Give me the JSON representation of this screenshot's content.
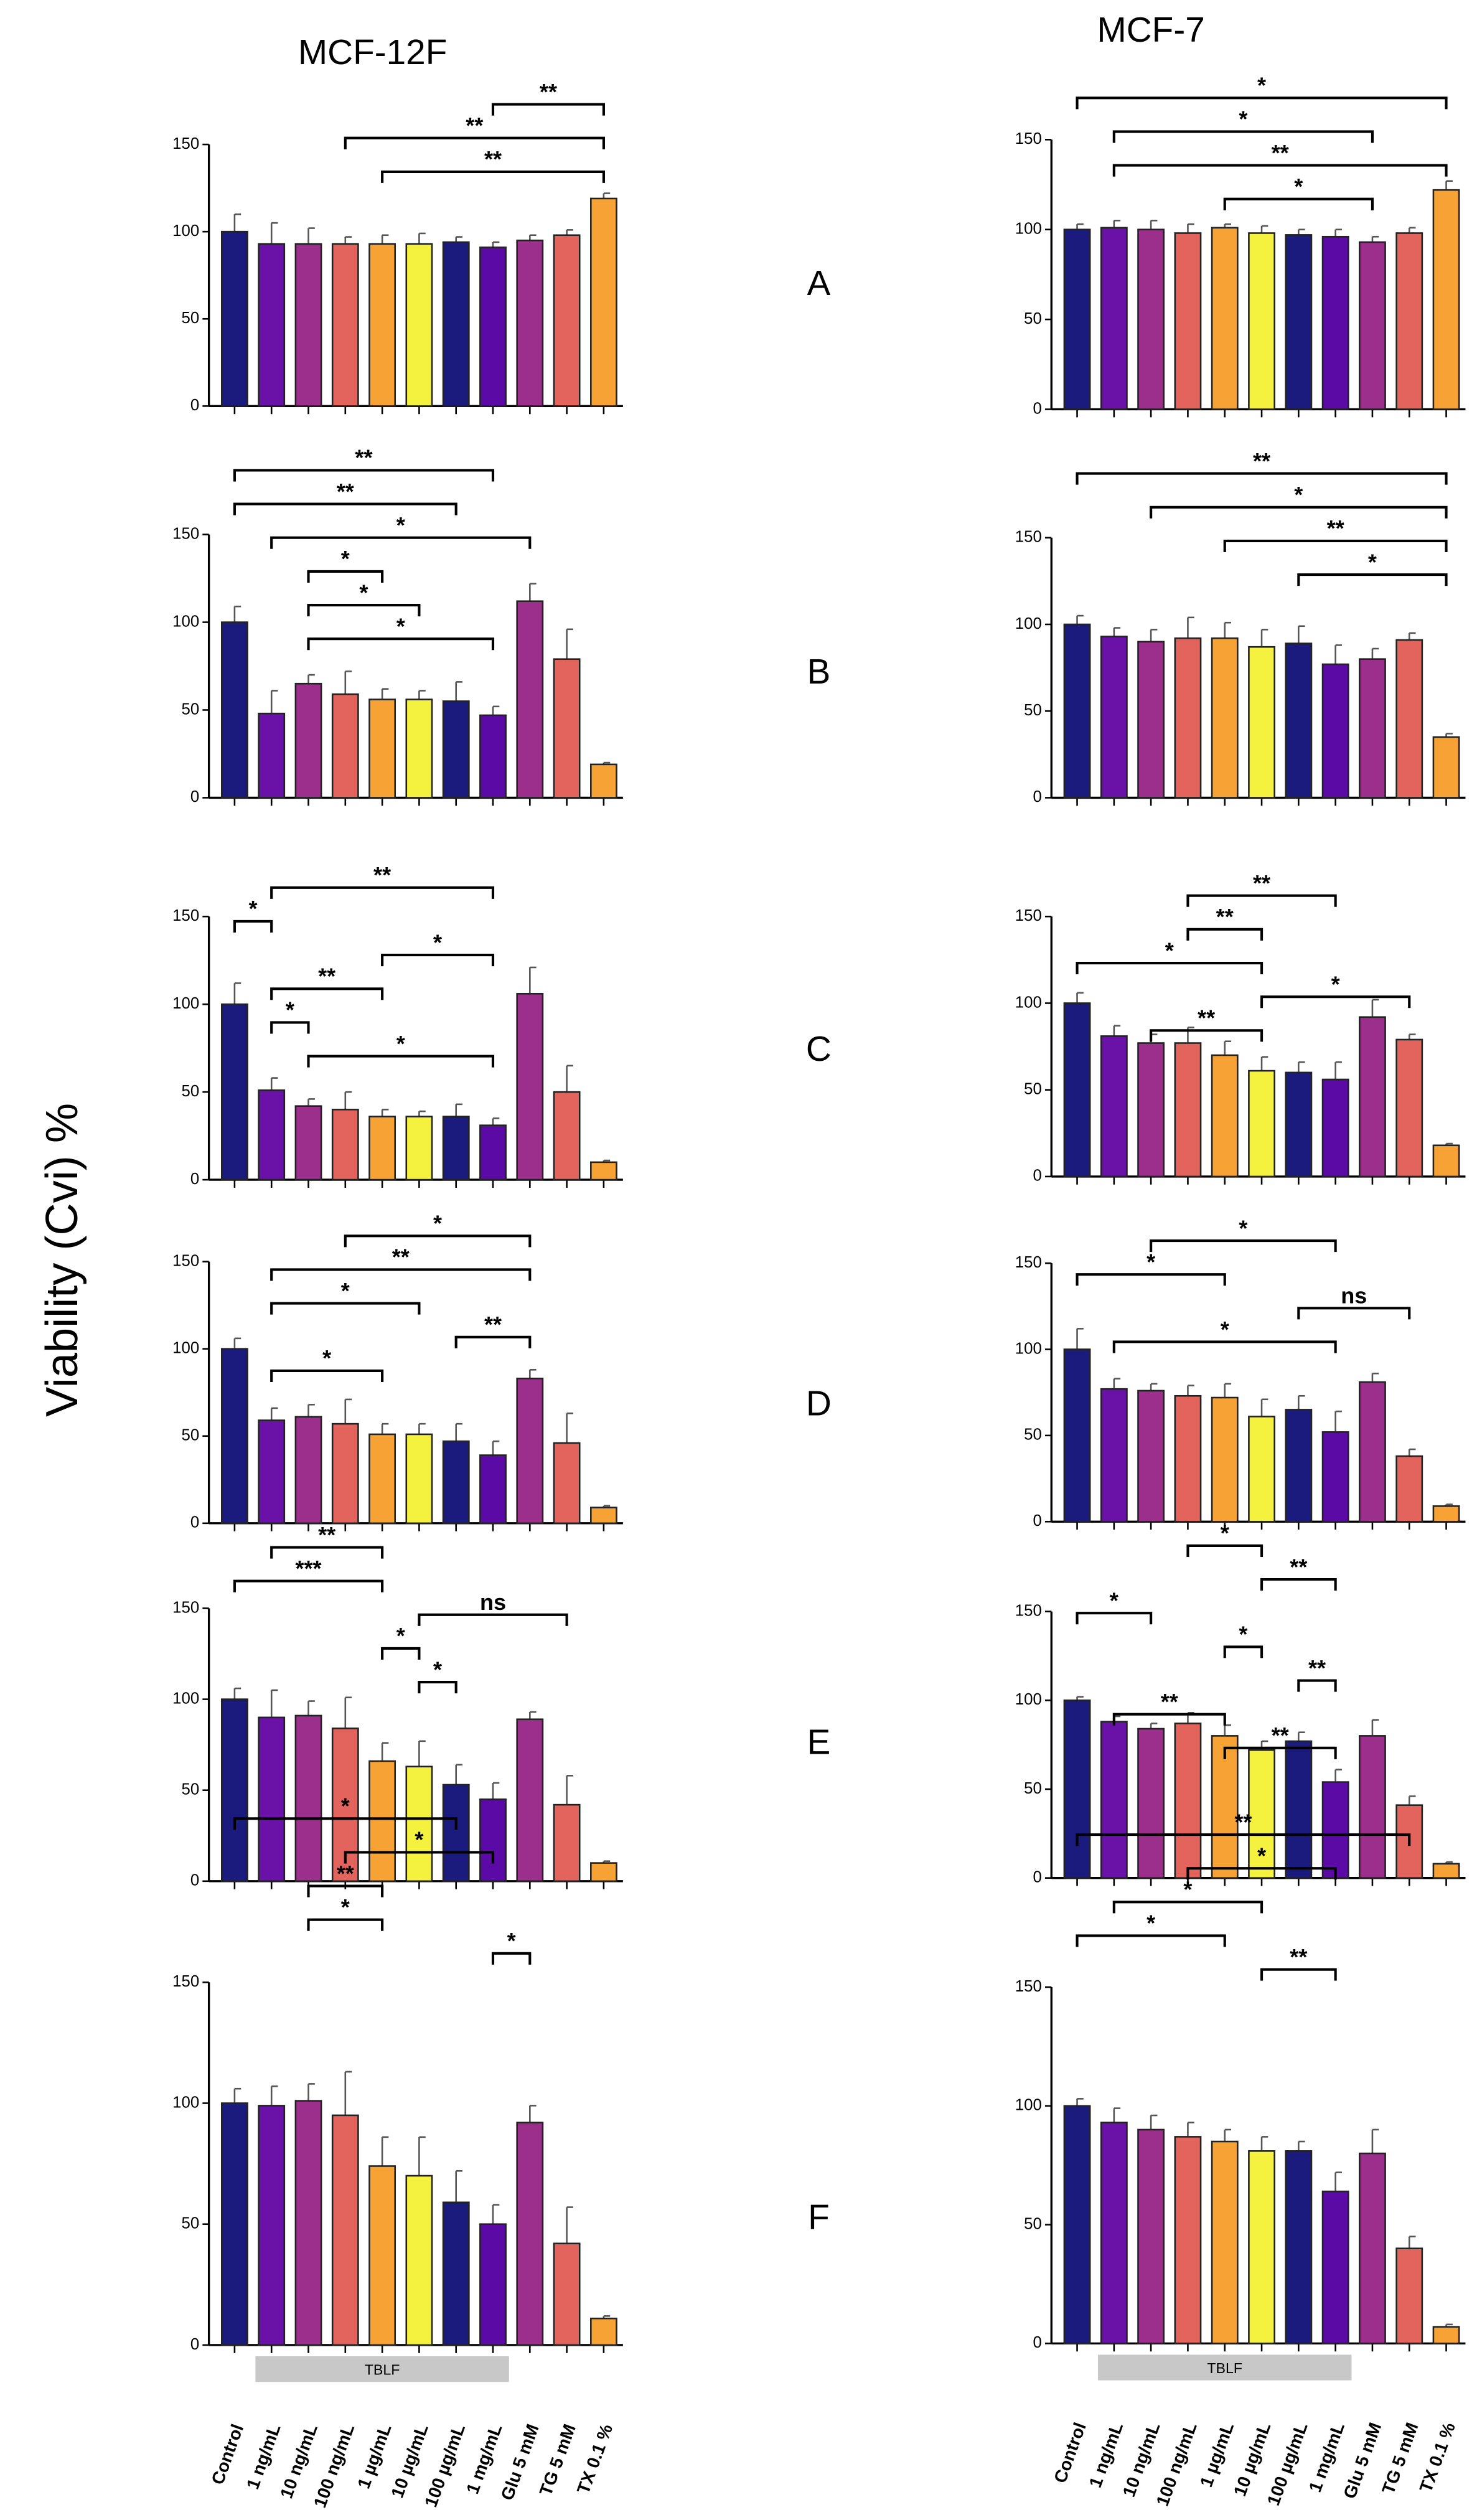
{
  "columns": [
    "MCF-12F",
    "MCF-7"
  ],
  "panels": [
    "A",
    "B",
    "C",
    "D",
    "E",
    "F"
  ],
  "ylabel": "Viability (Cvi) %",
  "group_label": "TBLF",
  "bar_colors": [
    "#1b1b7d",
    "#6a12a8",
    "#9c2e8c",
    "#e2645c",
    "#f7a234",
    "#f4f23e",
    "#1b1b7d",
    "#5c0aa6",
    "#9c2e8c",
    "#e2645c",
    "#f7a234"
  ],
  "chart_data": [
    {
      "type": "bar",
      "values": [
        100,
        93,
        93,
        93,
        93,
        93,
        94,
        91,
        95,
        98,
        119
      ],
      "errors": [
        10,
        12,
        9,
        4,
        5,
        6,
        3,
        3,
        3,
        3,
        3
      ],
      "ylim": [
        0,
        150
      ],
      "yticks": [
        0,
        50,
        100,
        150
      ],
      "annotations": [
        {
          "text": "**",
          "from": 7,
          "to": 10
        },
        {
          "text": "**",
          "from": 3,
          "to": 10
        },
        {
          "text": "**",
          "from": 4,
          "to": 10
        }
      ]
    },
    {
      "type": "bar",
      "values": [
        100,
        101,
        100,
        98,
        101,
        98,
        97,
        96,
        93,
        98,
        122
      ],
      "errors": [
        3,
        4,
        5,
        5,
        2,
        4,
        3,
        4,
        3,
        3,
        5
      ],
      "ylim": [
        0,
        150
      ],
      "yticks": [
        0,
        50,
        100,
        150
      ],
      "annotations": [
        {
          "text": "*",
          "from": 0,
          "to": 10
        },
        {
          "text": "*",
          "from": 1,
          "to": 8
        },
        {
          "text": "**",
          "from": 1,
          "to": 10
        },
        {
          "text": "*",
          "from": 4,
          "to": 8
        }
      ]
    },
    {
      "type": "bar",
      "values": [
        100,
        48,
        65,
        59,
        56,
        56,
        55,
        47,
        112,
        79,
        19
      ],
      "errors": [
        9,
        13,
        5,
        13,
        6,
        5,
        11,
        5,
        10,
        17,
        1
      ],
      "ylim": [
        0,
        150
      ],
      "yticks": [
        0,
        50,
        100,
        150
      ],
      "annotations": [
        {
          "text": "**",
          "from": 0,
          "to": 7
        },
        {
          "text": "**",
          "from": 0,
          "to": 6
        },
        {
          "text": "*",
          "from": 1,
          "to": 8
        },
        {
          "text": "*",
          "from": 2,
          "to": 4
        },
        {
          "text": "*",
          "from": 2,
          "to": 5
        },
        {
          "text": "*",
          "from": 2,
          "to": 7
        }
      ]
    },
    {
      "type": "bar",
      "values": [
        100,
        93,
        90,
        92,
        92,
        87,
        89,
        77,
        80,
        91,
        35
      ],
      "errors": [
        5,
        5,
        7,
        12,
        9,
        10,
        10,
        11,
        6,
        4,
        2
      ],
      "ylim": [
        0,
        150
      ],
      "yticks": [
        0,
        50,
        100,
        150
      ],
      "annotations": [
        {
          "text": "**",
          "from": 0,
          "to": 10
        },
        {
          "text": "*",
          "from": 2,
          "to": 10
        },
        {
          "text": "**",
          "from": 4,
          "to": 10
        },
        {
          "text": "*",
          "from": 6,
          "to": 10
        }
      ]
    },
    {
      "type": "bar",
      "values": [
        100,
        51,
        42,
        40,
        36,
        36,
        36,
        31,
        106,
        50,
        10
      ],
      "errors": [
        12,
        7,
        4,
        10,
        4,
        3,
        7,
        4,
        15,
        15,
        1
      ],
      "ylim": [
        0,
        150
      ],
      "yticks": [
        0,
        50,
        100,
        150
      ],
      "annotations": [
        {
          "text": "**",
          "from": 1,
          "to": 7
        },
        {
          "text": "*",
          "from": 0,
          "to": 1
        },
        {
          "text": "*",
          "from": 4,
          "to": 7
        },
        {
          "text": "**",
          "from": 1,
          "to": 4
        },
        {
          "text": "*",
          "from": 1,
          "to": 2
        },
        {
          "text": "*",
          "from": 2,
          "to": 7
        }
      ]
    },
    {
      "type": "bar",
      "values": [
        100,
        81,
        77,
        77,
        70,
        61,
        60,
        56,
        92,
        79,
        18
      ],
      "errors": [
        6,
        6,
        5,
        9,
        8,
        8,
        6,
        10,
        10,
        3,
        1
      ],
      "ylim": [
        0,
        150
      ],
      "yticks": [
        0,
        50,
        100,
        150
      ],
      "annotations": [
        {
          "text": "**",
          "from": 3,
          "to": 7
        },
        {
          "text": "**",
          "from": 3,
          "to": 5
        },
        {
          "text": "*",
          "from": 0,
          "to": 5
        },
        {
          "text": "*",
          "from": 5,
          "to": 9
        },
        {
          "text": "**",
          "from": 2,
          "to": 5
        }
      ]
    },
    {
      "type": "bar",
      "values": [
        100,
        59,
        61,
        57,
        51,
        51,
        47,
        39,
        83,
        46,
        9
      ],
      "errors": [
        6,
        7,
        7,
        14,
        6,
        6,
        10,
        8,
        5,
        17,
        1
      ],
      "ylim": [
        0,
        150
      ],
      "yticks": [
        0,
        50,
        100,
        150
      ],
      "annotations": [
        {
          "text": "*",
          "from": 3,
          "to": 8
        },
        {
          "text": "**",
          "from": 1,
          "to": 8
        },
        {
          "text": "*",
          "from": 1,
          "to": 5
        },
        {
          "text": "**",
          "from": 6,
          "to": 8
        },
        {
          "text": "*",
          "from": 1,
          "to": 4
        }
      ]
    },
    {
      "type": "bar",
      "values": [
        100,
        77,
        76,
        73,
        72,
        61,
        65,
        52,
        81,
        38,
        9
      ],
      "errors": [
        12,
        6,
        4,
        6,
        8,
        10,
        8,
        12,
        5,
        4,
        1
      ],
      "ylim": [
        0,
        150
      ],
      "yticks": [
        0,
        50,
        100,
        150
      ],
      "annotations": [
        {
          "text": "*",
          "from": 2,
          "to": 7
        },
        {
          "text": "*",
          "from": 0,
          "to": 4
        },
        {
          "text": "ns",
          "from": 6,
          "to": 9
        },
        {
          "text": "*",
          "from": 1,
          "to": 7
        }
      ]
    },
    {
      "type": "bar",
      "values": [
        100,
        90,
        91,
        84,
        66,
        63,
        53,
        45,
        89,
        42,
        10
      ],
      "errors": [
        6,
        15,
        8,
        17,
        10,
        14,
        11,
        9,
        4,
        16,
        1
      ],
      "ylim": [
        0,
        150
      ],
      "yticks": [
        0,
        50,
        100,
        150
      ],
      "annotations": [
        {
          "text": "**",
          "from": 1,
          "to": 4
        },
        {
          "text": "***",
          "from": 0,
          "to": 4
        },
        {
          "text": "ns",
          "from": 5,
          "to": 9
        },
        {
          "text": "*",
          "from": 4,
          "to": 5
        },
        {
          "text": "*",
          "from": 5,
          "to": 6
        }
      ]
    },
    {
      "type": "bar",
      "values": [
        100,
        88,
        84,
        87,
        80,
        72,
        77,
        54,
        80,
        41,
        8
      ],
      "errors": [
        2,
        3,
        3,
        6,
        6,
        5,
        5,
        7,
        9,
        5,
        1
      ],
      "ylim": [
        0,
        150
      ],
      "yticks": [
        0,
        50,
        100,
        150
      ],
      "annotations": [
        {
          "text": "*",
          "from": 3,
          "to": 5
        },
        {
          "text": "**",
          "from": 5,
          "to": 7
        },
        {
          "text": "*",
          "from": 0,
          "to": 2
        },
        {
          "text": "*",
          "from": 4,
          "to": 5
        },
        {
          "text": "**",
          "from": 6,
          "to": 7
        },
        {
          "text": "**",
          "from": 1,
          "to": 4
        },
        {
          "text": "**",
          "from": 4,
          "to": 7
        }
      ]
    },
    {
      "type": "bar",
      "categories": [
        "Control",
        "1 ng/mL",
        "10 ng/mL",
        "100 ng/mL",
        "1 µg/mL",
        "10 µg/mL",
        "100 µg/mL",
        "1 mg/mL",
        "Glu 5 mM",
        "TG 5 mM",
        "TX 0.1 %"
      ],
      "values": [
        100,
        99,
        101,
        95,
        74,
        70,
        59,
        50,
        92,
        42,
        11
      ],
      "errors": [
        6,
        8,
        7,
        18,
        12,
        16,
        13,
        8,
        7,
        15,
        1
      ],
      "ylim": [
        0,
        150
      ],
      "yticks": [
        0,
        50,
        100,
        150
      ],
      "annotations": [
        {
          "text": "*",
          "from": 0,
          "to": 6
        },
        {
          "text": "*",
          "from": 3,
          "to": 7
        },
        {
          "text": "**",
          "from": 2,
          "to": 4
        },
        {
          "text": "*",
          "from": 2,
          "to": 4
        },
        {
          "text": "*",
          "from": 7,
          "to": 8
        }
      ]
    },
    {
      "type": "bar",
      "categories": [
        "Control",
        "1 ng/mL",
        "10 ng/mL",
        "100 ng/mL",
        "1 µg/mL",
        "10 µg/mL",
        "100 µg/mL",
        "1 mg/mL",
        "Glu 5 mM",
        "TG 5 mM",
        "TX 0.1 %"
      ],
      "values": [
        100,
        93,
        90,
        87,
        85,
        81,
        81,
        64,
        80,
        40,
        7
      ],
      "errors": [
        3,
        6,
        6,
        6,
        5,
        6,
        4,
        8,
        10,
        5,
        1
      ],
      "ylim": [
        0,
        150
      ],
      "yticks": [
        0,
        50,
        100,
        150
      ],
      "annotations": [
        {
          "text": "**",
          "from": 0,
          "to": 9
        },
        {
          "text": "*",
          "from": 3,
          "to": 7
        },
        {
          "text": "*",
          "from": 1,
          "to": 5
        },
        {
          "text": "*",
          "from": 0,
          "to": 4
        },
        {
          "text": "**",
          "from": 5,
          "to": 7
        }
      ]
    }
  ]
}
